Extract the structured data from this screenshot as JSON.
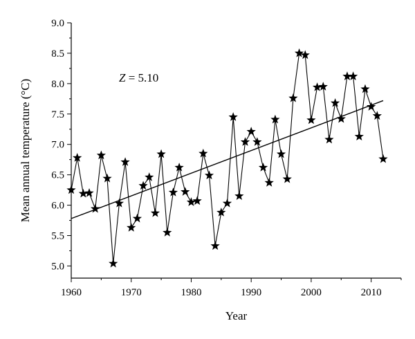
{
  "chart_data": {
    "type": "line",
    "xlabel": "Year",
    "ylabel": "Mean annual temperature (°C)",
    "annotation": "Z = 5.10",
    "xlim": [
      1960,
      2015
    ],
    "ylim": [
      4.8,
      9.0
    ],
    "xticks": [
      1960,
      1970,
      1980,
      1990,
      2000,
      2010
    ],
    "yticks": [
      "5.0",
      "5.5",
      "6.0",
      "6.5",
      "7.0",
      "7.5",
      "8.0",
      "8.5",
      "9.0"
    ],
    "series": [
      {
        "marker": "star",
        "x": [
          1960,
          1961,
          1962,
          1963,
          1964,
          1965,
          1966,
          1967,
          1968,
          1969,
          1970,
          1971,
          1972,
          1973,
          1974,
          1975,
          1976,
          1977,
          1978,
          1979,
          1980,
          1981,
          1982,
          1983,
          1984,
          1985,
          1986,
          1987,
          1988,
          1989,
          1990,
          1991,
          1992,
          1993,
          1994,
          1995,
          1996,
          1997,
          1998,
          1999,
          2000,
          2001,
          2002,
          2003,
          2004,
          2005,
          2006,
          2007,
          2008,
          2009,
          2010,
          2011,
          2012
        ],
        "values": [
          6.25,
          6.78,
          6.19,
          6.2,
          5.94,
          6.82,
          6.44,
          5.04,
          6.03,
          6.71,
          5.63,
          5.78,
          6.32,
          6.46,
          5.87,
          6.84,
          5.55,
          6.21,
          6.62,
          6.22,
          6.05,
          6.07,
          6.85,
          6.49,
          5.33,
          5.88,
          6.03,
          7.45,
          6.15,
          7.04,
          7.21,
          7.04,
          6.62,
          6.37,
          7.41,
          6.84,
          6.43,
          7.76,
          8.5,
          8.47,
          7.4,
          7.94,
          7.95,
          7.08,
          7.68,
          7.42,
          8.12,
          8.12,
          7.13,
          7.91,
          7.62,
          7.47,
          6.76
        ]
      }
    ],
    "trend": {
      "x": [
        1960,
        2012
      ],
      "values": [
        5.78,
        7.72
      ]
    }
  }
}
